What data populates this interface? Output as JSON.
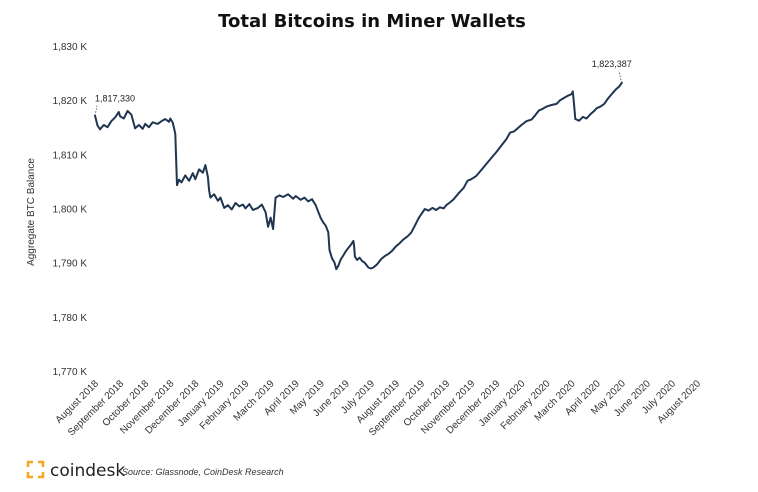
{
  "chart_data": {
    "type": "line",
    "title": "Total Bitcoins in Miner Wallets",
    "ylabel": "Aggregate BTC Balance",
    "xlabel": "",
    "ylim": [
      1770000,
      1830000
    ],
    "y_ticks": [
      {
        "value": 1830000,
        "label": "1,830 K"
      },
      {
        "value": 1820000,
        "label": "1,820 K"
      },
      {
        "value": 1810000,
        "label": "1,810 K"
      },
      {
        "value": 1800000,
        "label": "1,800 K"
      },
      {
        "value": 1790000,
        "label": "1,790 K"
      },
      {
        "value": 1780000,
        "label": "1,780 K"
      },
      {
        "value": 1770000,
        "label": "1,770 K"
      }
    ],
    "x_tick_labels": [
      "August 2018",
      "September 2018",
      "October 2018",
      "November 2018",
      "December 2018",
      "January 2019",
      "February 2019",
      "March 2019",
      "April 2019",
      "May 2019",
      "June 2019",
      "July 2019",
      "August 2019",
      "September 2019",
      "October 2019",
      "November 2019",
      "December 2019",
      "January 2020",
      "February 2020",
      "March 2020",
      "April 2020",
      "May 2020",
      "June 2020",
      "July 2020",
      "August 2020"
    ],
    "x_range": [
      0,
      24
    ],
    "grid": false,
    "series": [
      {
        "color": "#1f3550",
        "points": [
          [
            0.0,
            1817330
          ],
          [
            0.1,
            1815500
          ],
          [
            0.2,
            1814800
          ],
          [
            0.35,
            1815600
          ],
          [
            0.5,
            1815200
          ],
          [
            0.65,
            1816300
          ],
          [
            0.8,
            1817000
          ],
          [
            0.95,
            1818000
          ],
          [
            1.0,
            1817200
          ],
          [
            1.15,
            1816800
          ],
          [
            1.3,
            1818200
          ],
          [
            1.45,
            1817500
          ],
          [
            1.6,
            1815000
          ],
          [
            1.75,
            1815600
          ],
          [
            1.9,
            1814900
          ],
          [
            2.0,
            1815800
          ],
          [
            2.15,
            1815200
          ],
          [
            2.3,
            1816100
          ],
          [
            2.5,
            1815800
          ],
          [
            2.65,
            1816300
          ],
          [
            2.8,
            1816700
          ],
          [
            2.95,
            1816200
          ],
          [
            3.0,
            1816800
          ],
          [
            3.1,
            1816000
          ],
          [
            3.2,
            1814000
          ],
          [
            3.27,
            1804500
          ],
          [
            3.35,
            1805500
          ],
          [
            3.45,
            1805000
          ],
          [
            3.6,
            1806300
          ],
          [
            3.75,
            1805300
          ],
          [
            3.9,
            1806700
          ],
          [
            4.0,
            1805600
          ],
          [
            4.15,
            1807400
          ],
          [
            4.3,
            1806800
          ],
          [
            4.4,
            1808200
          ],
          [
            4.5,
            1806000
          ],
          [
            4.55,
            1803500
          ],
          [
            4.6,
            1802200
          ],
          [
            4.75,
            1802800
          ],
          [
            4.9,
            1801600
          ],
          [
            5.0,
            1802200
          ],
          [
            5.15,
            1800300
          ],
          [
            5.3,
            1800800
          ],
          [
            5.45,
            1800000
          ],
          [
            5.6,
            1801200
          ],
          [
            5.75,
            1800600
          ],
          [
            5.9,
            1800900
          ],
          [
            6.0,
            1800200
          ],
          [
            6.15,
            1801000
          ],
          [
            6.3,
            1799900
          ],
          [
            6.5,
            1800300
          ],
          [
            6.65,
            1800900
          ],
          [
            6.8,
            1799500
          ],
          [
            6.9,
            1796800
          ],
          [
            7.0,
            1798500
          ],
          [
            7.1,
            1796400
          ],
          [
            7.2,
            1802200
          ],
          [
            7.35,
            1802600
          ],
          [
            7.5,
            1802300
          ],
          [
            7.7,
            1802800
          ],
          [
            7.9,
            1802000
          ],
          [
            8.0,
            1802500
          ],
          [
            8.2,
            1801800
          ],
          [
            8.35,
            1802200
          ],
          [
            8.5,
            1801500
          ],
          [
            8.65,
            1801900
          ],
          [
            8.8,
            1800800
          ],
          [
            8.9,
            1799600
          ],
          [
            9.0,
            1798400
          ],
          [
            9.1,
            1797600
          ],
          [
            9.2,
            1797000
          ],
          [
            9.3,
            1795800
          ],
          [
            9.35,
            1792500
          ],
          [
            9.45,
            1791000
          ],
          [
            9.55,
            1790200
          ],
          [
            9.62,
            1789000
          ],
          [
            9.7,
            1789600
          ],
          [
            9.8,
            1790800
          ],
          [
            9.9,
            1791500
          ],
          [
            10.0,
            1792300
          ],
          [
            10.1,
            1792900
          ],
          [
            10.2,
            1793500
          ],
          [
            10.3,
            1794200
          ],
          [
            10.33,
            1793200
          ],
          [
            10.36,
            1791300
          ],
          [
            10.45,
            1790700
          ],
          [
            10.55,
            1791100
          ],
          [
            10.65,
            1790500
          ],
          [
            10.75,
            1790200
          ],
          [
            10.9,
            1789300
          ],
          [
            11.0,
            1789100
          ],
          [
            11.1,
            1789300
          ],
          [
            11.25,
            1789900
          ],
          [
            11.4,
            1790800
          ],
          [
            11.55,
            1791400
          ],
          [
            11.7,
            1791800
          ],
          [
            11.85,
            1792400
          ],
          [
            12.0,
            1793200
          ],
          [
            12.15,
            1793800
          ],
          [
            12.3,
            1794500
          ],
          [
            12.45,
            1795000
          ],
          [
            12.6,
            1795700
          ],
          [
            12.75,
            1797000
          ],
          [
            12.9,
            1798400
          ],
          [
            13.0,
            1799100
          ],
          [
            13.15,
            1800100
          ],
          [
            13.3,
            1799800
          ],
          [
            13.45,
            1800300
          ],
          [
            13.6,
            1799900
          ],
          [
            13.75,
            1800400
          ],
          [
            13.9,
            1800200
          ],
          [
            14.0,
            1800800
          ],
          [
            14.15,
            1801300
          ],
          [
            14.3,
            1801900
          ],
          [
            14.5,
            1803000
          ],
          [
            14.7,
            1804000
          ],
          [
            14.85,
            1805300
          ],
          [
            15.0,
            1805600
          ],
          [
            15.2,
            1806200
          ],
          [
            15.4,
            1807300
          ],
          [
            15.6,
            1808400
          ],
          [
            15.8,
            1809500
          ],
          [
            16.0,
            1810600
          ],
          [
            16.2,
            1811800
          ],
          [
            16.4,
            1813000
          ],
          [
            16.55,
            1814200
          ],
          [
            16.7,
            1814400
          ],
          [
            16.85,
            1815000
          ],
          [
            17.0,
            1815600
          ],
          [
            17.2,
            1816300
          ],
          [
            17.4,
            1816600
          ],
          [
            17.55,
            1817400
          ],
          [
            17.7,
            1818300
          ],
          [
            17.85,
            1818600
          ],
          [
            18.0,
            1819000
          ],
          [
            18.2,
            1819300
          ],
          [
            18.4,
            1819500
          ],
          [
            18.55,
            1820200
          ],
          [
            18.7,
            1820600
          ],
          [
            18.85,
            1821000
          ],
          [
            19.0,
            1821300
          ],
          [
            19.05,
            1821800
          ],
          [
            19.1,
            1819300
          ],
          [
            19.15,
            1816700
          ],
          [
            19.3,
            1816400
          ],
          [
            19.45,
            1817100
          ],
          [
            19.6,
            1816800
          ],
          [
            19.75,
            1817600
          ],
          [
            19.9,
            1818200
          ],
          [
            20.0,
            1818700
          ],
          [
            20.15,
            1819000
          ],
          [
            20.3,
            1819500
          ],
          [
            20.45,
            1820500
          ],
          [
            20.6,
            1821300
          ],
          [
            20.75,
            1822100
          ],
          [
            20.9,
            1822700
          ],
          [
            21.0,
            1823387
          ]
        ]
      }
    ],
    "annotations": [
      {
        "x": 0.0,
        "y": 1817330,
        "text": "1,817,330"
      },
      {
        "x": 21.0,
        "y": 1823387,
        "text": "1,823,387"
      }
    ]
  },
  "footer": {
    "brand": "coindesk",
    "source": "Source: Glassnode, CoinDesk Research"
  },
  "colors": {
    "line": "#1f3550",
    "brand_accent": "#f5a623"
  }
}
